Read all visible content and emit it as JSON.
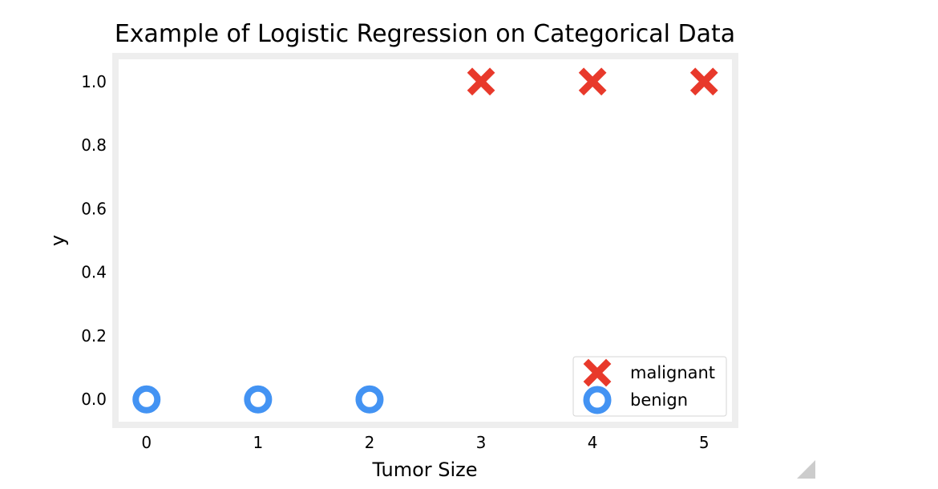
{
  "chart_data": {
    "type": "scatter",
    "title": "Example of Logistic Regression on Categorical Data",
    "xlabel": "Tumor Size",
    "ylabel": "y",
    "xlim": [
      -0.25,
      5.25
    ],
    "ylim": [
      -0.07,
      1.07
    ],
    "xticks": [
      "0",
      "1",
      "2",
      "3",
      "4",
      "5"
    ],
    "yticks": [
      "0.0",
      "0.2",
      "0.4",
      "0.6",
      "0.8",
      "1.0"
    ],
    "grid": false,
    "legend_position": "lower right",
    "series": [
      {
        "name": "malignant",
        "marker": "x",
        "color": "#e8392b",
        "x": [
          3,
          4,
          5
        ],
        "y": [
          1,
          1,
          1
        ]
      },
      {
        "name": "benign",
        "marker": "o",
        "color": "#4393f3",
        "x": [
          0,
          1,
          2
        ],
        "y": [
          0,
          0,
          0
        ]
      }
    ]
  }
}
